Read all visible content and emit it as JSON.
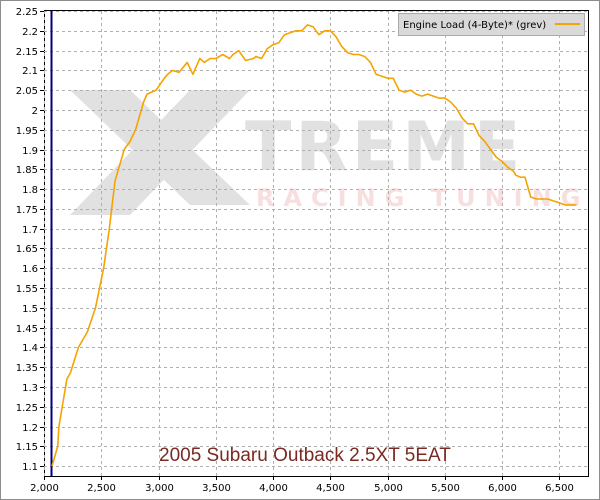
{
  "chart_data": {
    "type": "line",
    "title": "",
    "xlabel": "",
    "ylabel": "",
    "xlim": [
      2000,
      6750
    ],
    "ylim": [
      1.075,
      2.25
    ],
    "x_ticks": [
      "2,000",
      "2,500",
      "3,000",
      "3,500",
      "4,000",
      "4,500",
      "5,000",
      "5,500",
      "6,000",
      "6,500"
    ],
    "x_tick_values": [
      2000,
      2500,
      3000,
      3500,
      4000,
      4500,
      5000,
      5500,
      6000,
      6500
    ],
    "y_ticks": [
      "1.1",
      "1.15",
      "1.2",
      "1.25",
      "1.3",
      "1.35",
      "1.4",
      "1.45",
      "1.5",
      "1.55",
      "1.6",
      "1.65",
      "1.7",
      "1.75",
      "1.8",
      "1.85",
      "1.9",
      "1.95",
      "2",
      "2.05",
      "2.1",
      "2.15",
      "2.2",
      "2.25"
    ],
    "y_tick_values": [
      1.1,
      1.15,
      1.2,
      1.25,
      1.3,
      1.35,
      1.4,
      1.45,
      1.5,
      1.55,
      1.6,
      1.65,
      1.7,
      1.75,
      1.8,
      1.85,
      1.9,
      1.95,
      2.0,
      2.05,
      2.1,
      2.15,
      2.2,
      2.25
    ],
    "grid": true,
    "legend_position": "top-right",
    "cursor_x": 2060,
    "series": [
      {
        "name": "Engine Load (4-Byte)* (grev)",
        "color": "#f5a300",
        "x": [
          2070,
          2120,
          2130,
          2200,
          2230,
          2300,
          2380,
          2450,
          2520,
          2570,
          2620,
          2700,
          2750,
          2800,
          2870,
          2900,
          2980,
          3050,
          3080,
          3120,
          3180,
          3250,
          3300,
          3360,
          3400,
          3450,
          3500,
          3560,
          3620,
          3650,
          3700,
          3760,
          3830,
          3850,
          3900,
          3950,
          4000,
          4050,
          4100,
          4150,
          4200,
          4250,
          4300,
          4350,
          4400,
          4450,
          4500,
          4550,
          4600,
          4650,
          4700,
          4750,
          4800,
          4850,
          4900,
          4950,
          5000,
          5050,
          5100,
          5150,
          5200,
          5250,
          5300,
          5350,
          5400,
          5450,
          5500,
          5550,
          5600,
          5650,
          5700,
          5750,
          5800,
          5850,
          5900,
          5950,
          6000,
          6050,
          6100,
          6120,
          6160,
          6200,
          6250,
          6300,
          6350,
          6400,
          6450,
          6500,
          6550,
          6600,
          6650
        ],
        "y": [
          1.1,
          1.15,
          1.2,
          1.32,
          1.335,
          1.4,
          1.44,
          1.5,
          1.6,
          1.7,
          1.82,
          1.9,
          1.92,
          1.95,
          2.02,
          2.04,
          2.05,
          2.08,
          2.09,
          2.1,
          2.095,
          2.12,
          2.09,
          2.13,
          2.12,
          2.13,
          2.13,
          2.14,
          2.13,
          2.14,
          2.15,
          2.125,
          2.13,
          2.135,
          2.13,
          2.155,
          2.165,
          2.17,
          2.19,
          2.195,
          2.2,
          2.2,
          2.215,
          2.21,
          2.19,
          2.2,
          2.2,
          2.185,
          2.16,
          2.145,
          2.14,
          2.14,
          2.135,
          2.12,
          2.09,
          2.085,
          2.08,
          2.08,
          2.05,
          2.045,
          2.05,
          2.04,
          2.035,
          2.04,
          2.035,
          2.03,
          2.03,
          2.02,
          2.005,
          1.98,
          1.965,
          1.965,
          1.935,
          1.92,
          1.9,
          1.88,
          1.87,
          1.855,
          1.845,
          1.835,
          1.83,
          1.83,
          1.78,
          1.775,
          1.775,
          1.775,
          1.77,
          1.765,
          1.76,
          1.76,
          1.76
        ]
      }
    ]
  },
  "caption": "2005 Subaru Outback 2.5XT 5EAT",
  "watermark": {
    "big": "TREME",
    "sub": "RACING TUNING"
  }
}
